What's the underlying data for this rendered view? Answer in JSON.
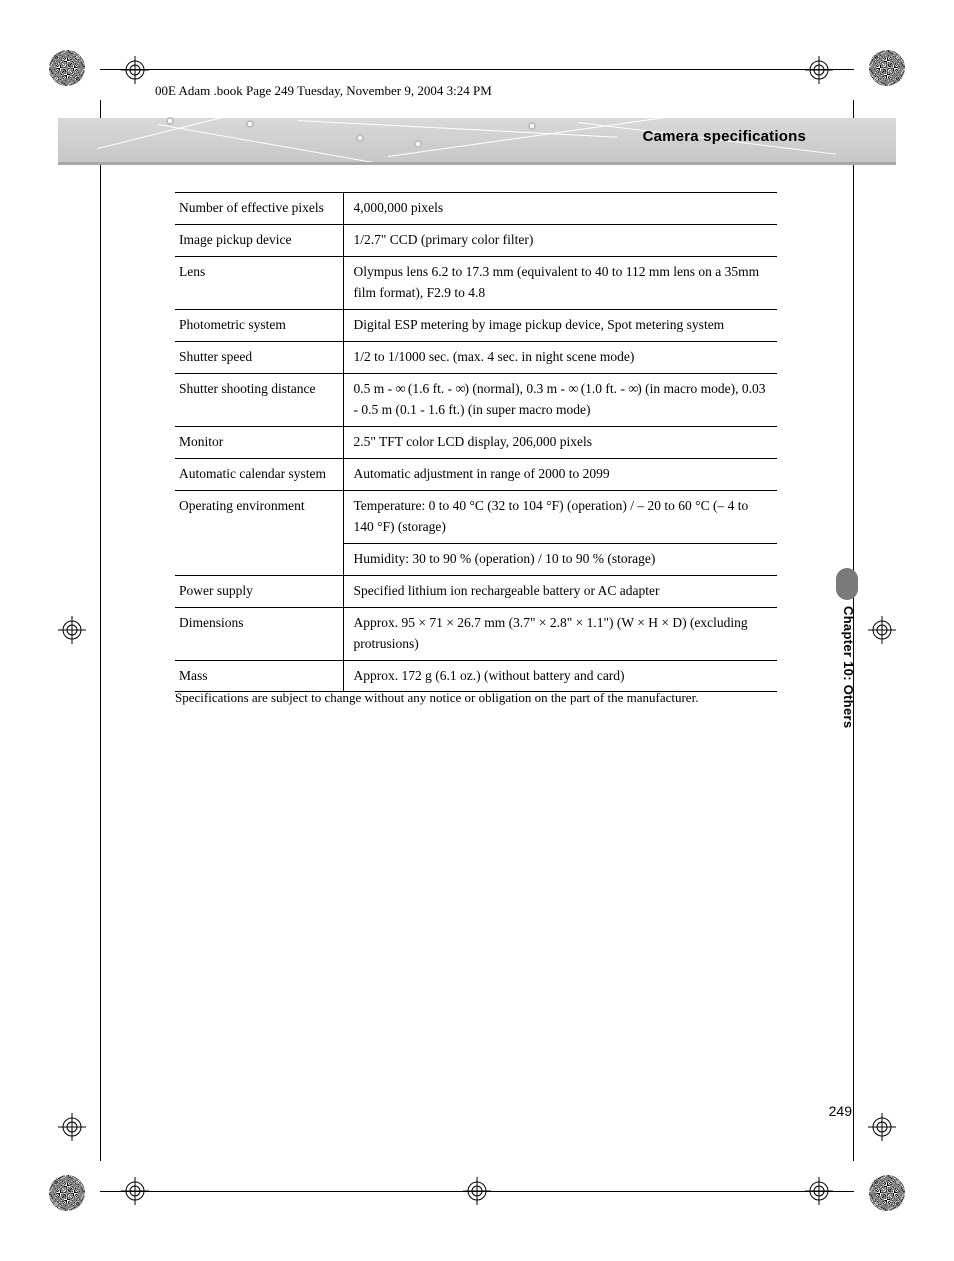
{
  "header": {
    "crop_text": "00E Adam .book  Page 249  Tuesday, November 9, 2004  3:24 PM",
    "section_title": "Camera specifications"
  },
  "table": {
    "rows": [
      {
        "label": "Number of effective pixels",
        "value": "4,000,000 pixels"
      },
      {
        "label": "Image pickup device",
        "value": "1/2.7\" CCD (primary color filter)"
      },
      {
        "label": "Lens",
        "value": "Olympus lens 6.2 to 17.3 mm (equivalent to 40 to 112 mm lens on a 35mm film format), F2.9 to 4.8"
      },
      {
        "label": "Photometric system",
        "value": "Digital ESP metering by image pickup device, Spot metering system"
      },
      {
        "label": "Shutter speed",
        "value": "1/2 to 1/1000 sec. (max. 4 sec. in night scene mode)"
      },
      {
        "label": "Shutter shooting distance",
        "value": "0.5 m - ∞ (1.6 ft. -  ∞) (normal), 0.3 m - ∞ (1.0 ft. -  ∞) (in macro mode), 0.03 - 0.5 m (0.1 - 1.6 ft.) (in super macro mode)"
      },
      {
        "label": "Monitor",
        "value": "2.5\" TFT color LCD display, 206,000 pixels"
      },
      {
        "label": "Automatic calendar system",
        "value": "Automatic adjustment in range of 2000 to 2099"
      },
      {
        "label": "Operating environment",
        "value": "Temperature: 0 to 40 °C (32 to 104 °F) (operation) / – 20 to 60 °C (– 4 to 140 °F) (storage)",
        "value2": "Humidity: 30 to 90 % (operation) / 10 to 90 % (storage)"
      },
      {
        "label": "Power supply",
        "value": "Specified lithium ion rechargeable battery or AC adapter"
      },
      {
        "label": "Dimensions",
        "value": "Approx. 95 × 71 × 26.7 mm (3.7\" × 2.8\" × 1.1\") (W × H × D) (excluding protrusions)"
      },
      {
        "label": "Mass",
        "value": "Approx. 172 g (6.1 oz.) (without battery and card)"
      }
    ]
  },
  "footnote": "Specifications are subject to change without any notice or obligation on the part of the manufacturer.",
  "chapter_label": "Chapter 10: Others",
  "page_number": "249",
  "colors": {
    "banner_bg": "#cfcfcf",
    "banner_underline": "#a8a8a8",
    "tab_bg": "#7a7a7a",
    "text": "#000000",
    "bg": "#ffffff"
  }
}
